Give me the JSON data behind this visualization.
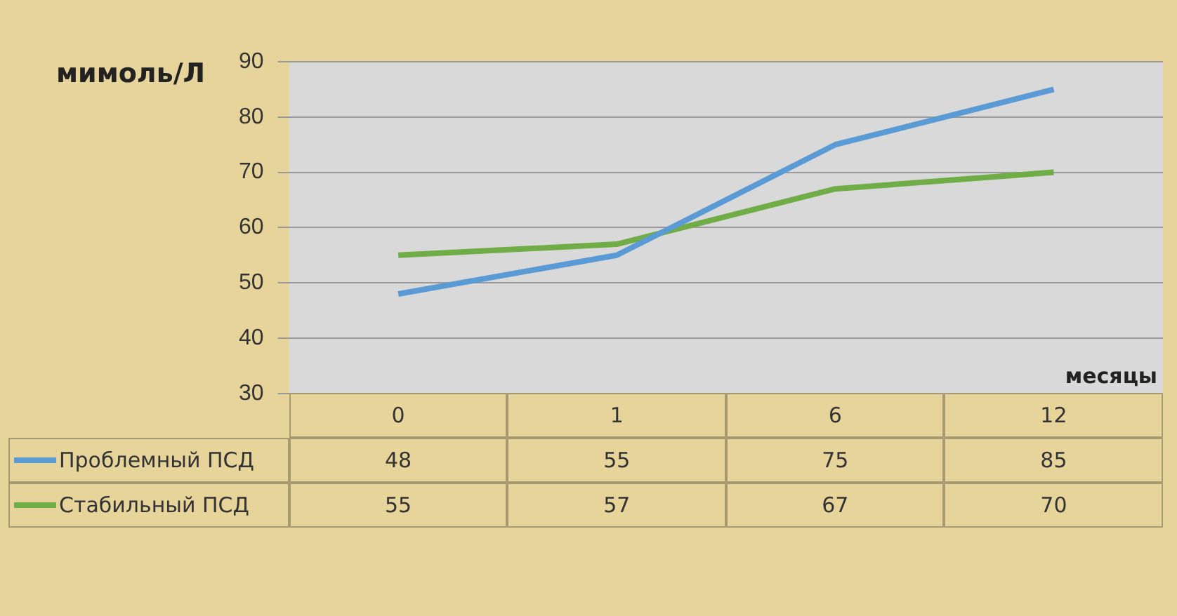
{
  "chart_data": {
    "type": "line",
    "ylabel": "мимоль/Л",
    "xlabel": "месяцы",
    "categories": [
      "0",
      "1",
      "6",
      "12"
    ],
    "series": [
      {
        "name": "Проблемный ПСД",
        "color": "#5b9bd5",
        "values": [
          48,
          55,
          75,
          85
        ]
      },
      {
        "name": "Стабильный ПСД",
        "color": "#70ad47",
        "values": [
          55,
          57,
          67,
          70
        ]
      }
    ],
    "ylim": [
      30,
      90
    ],
    "yticks": [
      30,
      40,
      50,
      60,
      70,
      80,
      90
    ],
    "grid": "y",
    "legend": "bottom",
    "data_labels": true,
    "marker": "none"
  }
}
